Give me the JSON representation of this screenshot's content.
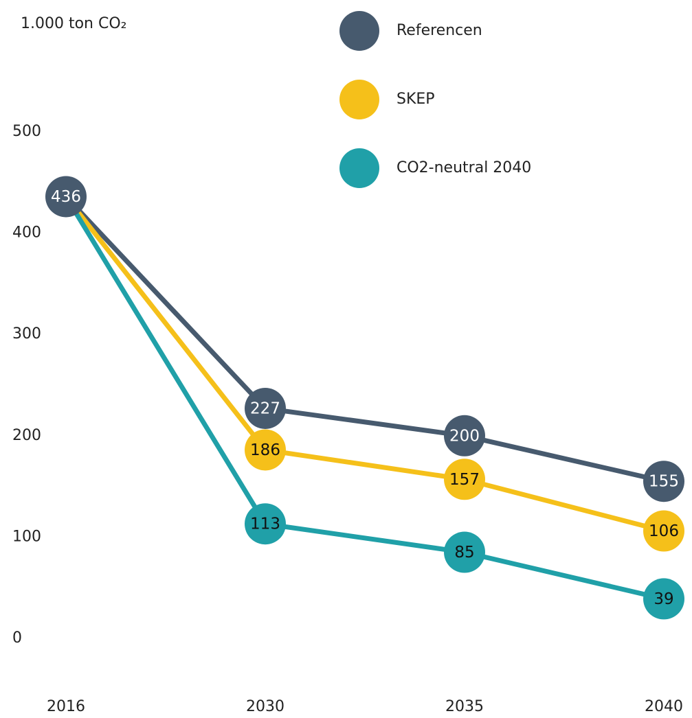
{
  "chart_data": {
    "type": "line",
    "y_label": "1.000 ton CO₂",
    "categories": [
      "2016",
      "2030",
      "2035",
      "2040"
    ],
    "series": [
      {
        "name": "Referencen",
        "color": "#475a6e",
        "label_color": "#ffffff",
        "values": [
          436,
          227,
          200,
          155
        ]
      },
      {
        "name": "SKEP",
        "color": "#f5c01a",
        "label_color": "#111111",
        "values": [
          436,
          186,
          157,
          106
        ]
      },
      {
        "name": "CO2-neutral 2040",
        "color": "#20a0a8",
        "label_color": "#111111",
        "values": [
          436,
          113,
          85,
          39
        ]
      }
    ],
    "ylim": [
      0,
      500
    ],
    "yticks": [
      0,
      100,
      200,
      300,
      400,
      500
    ],
    "grid": false
  }
}
